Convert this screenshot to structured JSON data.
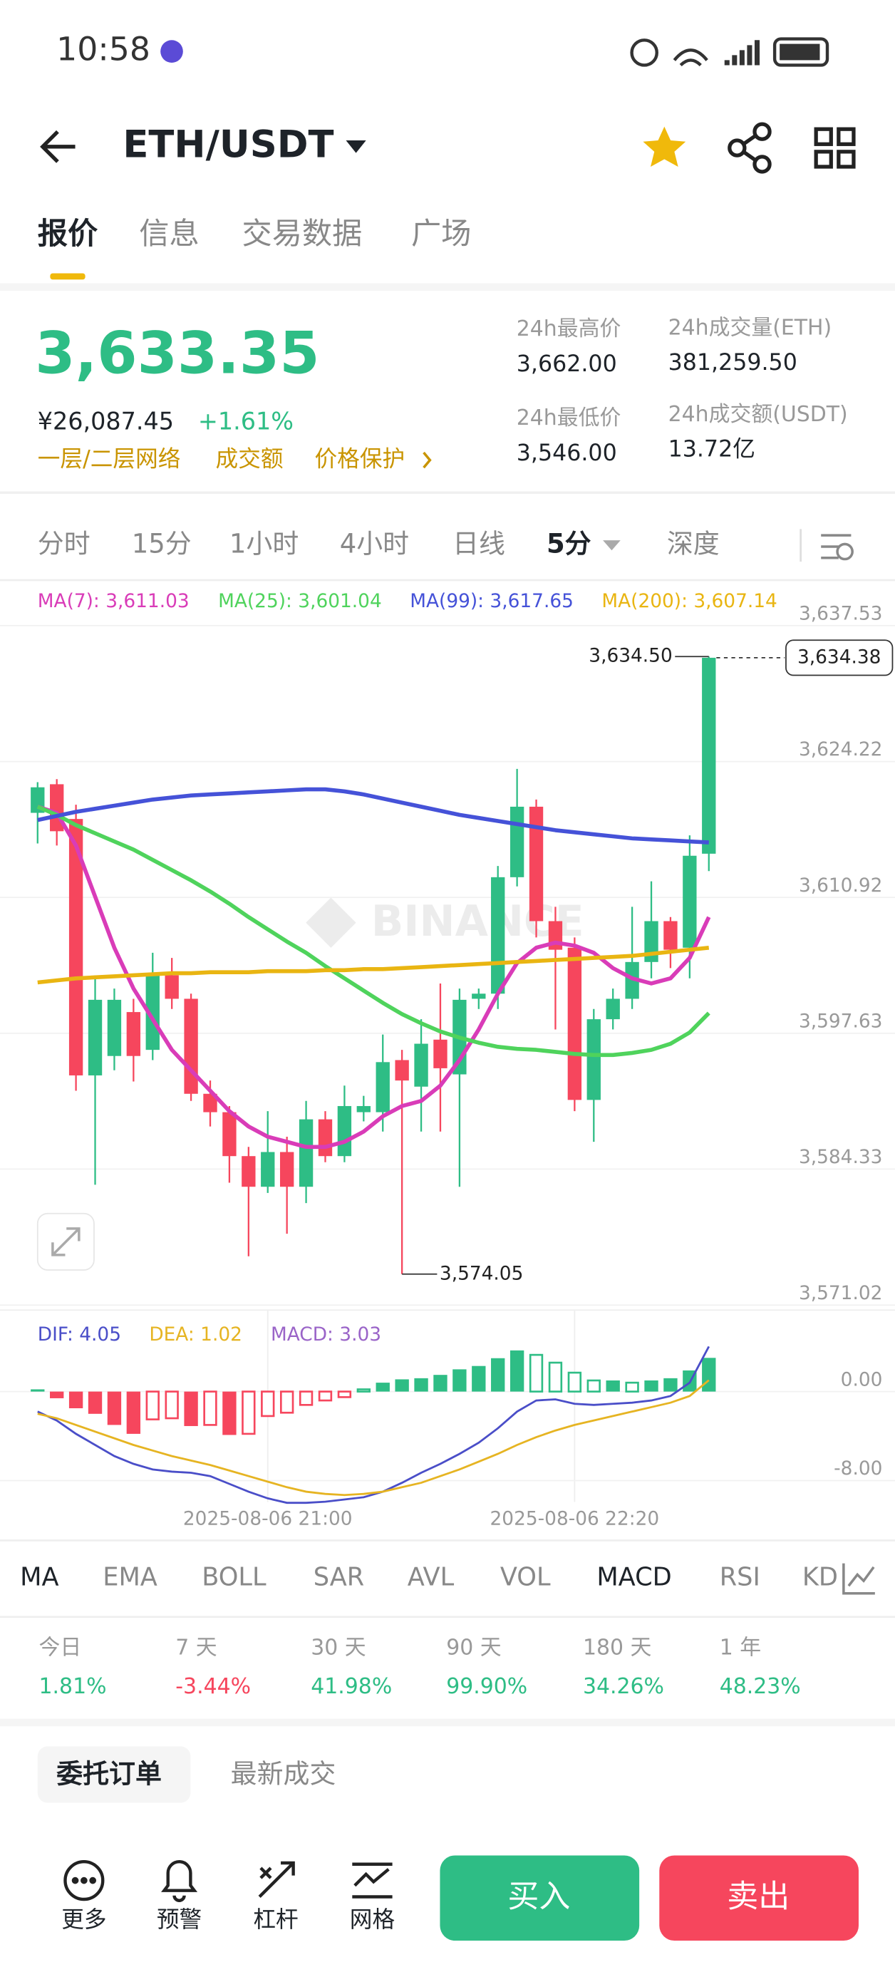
{
  "status": {
    "time": "10:58"
  },
  "header": {
    "pair": "ETH/USDT"
  },
  "tabs": [
    "报价",
    "信息",
    "交易数据",
    "广场"
  ],
  "quote": {
    "price": "3,633.35",
    "cny": "¥26,087.45",
    "change": "+1.61%",
    "links": [
      "一层/二层网络",
      "成交额",
      "价格保护"
    ],
    "stats": [
      {
        "label": "24h最高价",
        "value": "3,662.00"
      },
      {
        "label": "24h最低价",
        "value": "3,546.00"
      },
      {
        "label": "24h成交量(ETH)",
        "value": "381,259.50"
      },
      {
        "label": "24h成交额(USDT)",
        "value": "13.72亿"
      }
    ]
  },
  "intervals": [
    "分时",
    "15分",
    "1小时",
    "4小时",
    "日线",
    "5分",
    "深度"
  ],
  "chart_data": [
    {
      "type": "candlestick",
      "watermark": "BINANCE",
      "grid": true,
      "up_color": "#2ebd85",
      "down_color": "#f6465d",
      "open": [
        3619.2,
        3622.0,
        3618.6,
        3593.5,
        3595.4,
        3599.7,
        3596.0,
        3603.3,
        3601.0,
        3591.7,
        3589.9,
        3585.6,
        3582.6,
        3586.0,
        3582.6,
        3589.2,
        3585.6,
        3589.9,
        3589.9,
        3595.0,
        3592.4,
        3597.0,
        3593.6,
        3601.0,
        3601.5,
        3612.9,
        3619.8,
        3608.6,
        3606.0,
        3591.1,
        3599.0,
        3601.0,
        3604.6,
        3608.6,
        3606.0,
        3615.2
      ],
      "high": [
        3622.2,
        3622.5,
        3620.0,
        3603.3,
        3602.0,
        3601.0,
        3605.5,
        3605.0,
        3601.5,
        3593.0,
        3590.5,
        3586.5,
        3590.0,
        3587.5,
        3591.0,
        3590.0,
        3592.5,
        3591.5,
        3597.5,
        3596.0,
        3599.0,
        3602.5,
        3602.0,
        3602.0,
        3614.0,
        3623.5,
        3620.5,
        3610.0,
        3607.0,
        3600.0,
        3602.0,
        3610.0,
        3612.5,
        3609.0,
        3617.0,
        3634.5
      ],
      "low": [
        3616.2,
        3616.0,
        3592.0,
        3582.8,
        3594.0,
        3592.9,
        3595.0,
        3600.0,
        3591.0,
        3588.5,
        3583.0,
        3575.8,
        3582.0,
        3578.0,
        3581.0,
        3585.0,
        3585.0,
        3589.0,
        3588.0,
        3574.05,
        3588.0,
        3588.0,
        3582.6,
        3600.0,
        3600.0,
        3612.0,
        3607.0,
        3598.0,
        3590.0,
        3587.0,
        3598.0,
        3600.0,
        3603.0,
        3604.0,
        3603.0,
        3613.5
      ],
      "close": [
        3621.7,
        3617.4,
        3593.5,
        3600.9,
        3600.9,
        3595.4,
        3603.3,
        3601.0,
        3591.7,
        3589.9,
        3585.6,
        3582.6,
        3586.0,
        3582.6,
        3589.2,
        3585.6,
        3590.5,
        3590.5,
        3594.8,
        3593.0,
        3596.6,
        3594.2,
        3600.9,
        3601.5,
        3612.9,
        3619.8,
        3608.6,
        3605.8,
        3591.1,
        3599.0,
        3601.0,
        3604.6,
        3608.6,
        3605.8,
        3615.0,
        3634.38
      ],
      "ylim": [
        3570.53,
        3638.02
      ],
      "yticks": [
        {
          "value": 3637.53,
          "label": "3,637.53"
        },
        {
          "value": 3624.22,
          "label": "3,624.22"
        },
        {
          "value": 3610.92,
          "label": "3,610.92"
        },
        {
          "value": 3597.63,
          "label": "3,597.63"
        },
        {
          "value": 3584.33,
          "label": "3,584.33"
        },
        {
          "value": 3571.02,
          "label": "3,571.02"
        }
      ],
      "high_label": "3,634.50",
      "low_label": "3,574.05",
      "last_price": {
        "value": 3634.38,
        "label": "3,634.38"
      },
      "series": [
        {
          "name": "MA(7): 3,611.03",
          "color": "#d93cb8",
          "values": [
            3619.8,
            3619.2,
            3616,
            3611,
            3606,
            3602,
            3599,
            3596,
            3594,
            3592,
            3590,
            3588.5,
            3587.5,
            3587,
            3586.5,
            3586.5,
            3587,
            3588,
            3589.5,
            3590.5,
            3591,
            3592.5,
            3595,
            3598,
            3601.5,
            3604.5,
            3606,
            3606.5,
            3606.2,
            3605.5,
            3604,
            3603,
            3602.5,
            3603,
            3605,
            3609
          ]
        },
        {
          "name": "MA(25): 3,601.04",
          "color": "#4fd35c",
          "values": [
            3619.8,
            3619,
            3618,
            3617.2,
            3616.4,
            3615.6,
            3614.6,
            3613.6,
            3612.6,
            3611.5,
            3610.3,
            3609,
            3607.8,
            3606.6,
            3605.5,
            3604.2,
            3603,
            3601.8,
            3600.6,
            3599.5,
            3598.6,
            3597.8,
            3597.2,
            3596.7,
            3596.3,
            3596.1,
            3596,
            3595.8,
            3595.6,
            3595.5,
            3595.5,
            3595.7,
            3596,
            3596.6,
            3597.7,
            3599.6
          ]
        },
        {
          "name": "MA(99): 3,617.65",
          "color": "#4552d8",
          "values": [
            3618.5,
            3618.9,
            3619.3,
            3619.6,
            3619.9,
            3620.2,
            3620.5,
            3620.7,
            3620.9,
            3621,
            3621.1,
            3621.2,
            3621.3,
            3621.4,
            3621.5,
            3621.5,
            3621.3,
            3621,
            3620.6,
            3620.2,
            3619.8,
            3619.4,
            3619,
            3618.7,
            3618.4,
            3618.1,
            3617.8,
            3617.5,
            3617.3,
            3617.1,
            3616.9,
            3616.7,
            3616.6,
            3616.5,
            3616.4,
            3616.3
          ]
        },
        {
          "name": "MA(200): 3,607.14",
          "color": "#e9b512",
          "values": [
            3602.6,
            3602.8,
            3603,
            3603.1,
            3603.2,
            3603.3,
            3603.4,
            3603.5,
            3603.5,
            3603.6,
            3603.6,
            3603.6,
            3603.7,
            3603.7,
            3603.7,
            3603.8,
            3603.8,
            3603.9,
            3603.9,
            3604,
            3604.1,
            3604.2,
            3604.3,
            3604.4,
            3604.5,
            3604.6,
            3604.7,
            3604.8,
            3604.9,
            3605,
            3605.1,
            3605.2,
            3605.4,
            3605.6,
            3605.8,
            3606
          ]
        }
      ]
    },
    {
      "type": "macd",
      "up_color": "#2ebd85",
      "down_color": "#f6465d",
      "categories": [
        null,
        null,
        null,
        null,
        null,
        null,
        null,
        null,
        null,
        null,
        null,
        null,
        "2025-08-06 21:00",
        null,
        null,
        null,
        null,
        null,
        null,
        null,
        null,
        null,
        null,
        null,
        null,
        null,
        null,
        null,
        "2025-08-06 22:20",
        null,
        null,
        null,
        null,
        null,
        null,
        null
      ],
      "ylim": [
        -10.2,
        7
      ],
      "yticks": [
        {
          "value": 0,
          "label": "0.00"
        },
        {
          "value": -8,
          "label": "-8.00"
        }
      ],
      "series": [
        {
          "name": "DIF: 4.05",
          "color": "#4a4ec8",
          "values": [
            -1.8,
            -2.6,
            -3.8,
            -4.8,
            -5.8,
            -6.5,
            -7.0,
            -7.2,
            -7.3,
            -7.6,
            -8.3,
            -9.0,
            -9.6,
            -10.0,
            -10.0,
            -9.9,
            -9.7,
            -9.5,
            -9.0,
            -8.2,
            -7.3,
            -6.5,
            -5.6,
            -4.6,
            -3.3,
            -1.8,
            -0.8,
            -0.7,
            -1.1,
            -1.2,
            -1.1,
            -1.0,
            -0.8,
            -0.4,
            0.8,
            4.05
          ]
        },
        {
          "name": "DEA: 1.02",
          "color": "#e6b422",
          "values": [
            -2.0,
            -2.4,
            -3.0,
            -3.6,
            -4.2,
            -4.8,
            -5.3,
            -5.8,
            -6.2,
            -6.6,
            -7.1,
            -7.6,
            -8.1,
            -8.6,
            -9.0,
            -9.2,
            -9.3,
            -9.2,
            -9.0,
            -8.6,
            -8.2,
            -7.6,
            -7.0,
            -6.3,
            -5.6,
            -4.8,
            -4.1,
            -3.5,
            -3.0,
            -2.6,
            -2.2,
            -1.8,
            -1.4,
            -1.0,
            -0.4,
            1.02
          ]
        },
        {
          "name": "MACD: 3.03",
          "color": "#9a64c8",
          "values": [
            0.2,
            -0.6,
            -1.5,
            -2.0,
            -3.0,
            -3.8,
            -2.5,
            -2.4,
            -3.1,
            -3.0,
            -3.9,
            -3.8,
            -2.2,
            -1.9,
            -1.2,
            -0.8,
            -0.5,
            0.2,
            0.8,
            1.1,
            1.2,
            1.5,
            2.0,
            2.3,
            3.0,
            3.7,
            3.3,
            2.6,
            1.7,
            1.0,
            1.0,
            0.8,
            1.0,
            1.2,
            1.9,
            3.03
          ]
        }
      ]
    }
  ],
  "indicators": [
    "MA",
    "EMA",
    "BOLL",
    "SAR",
    "AVL",
    "VOL",
    "MACD",
    "RSI",
    "KD"
  ],
  "performance": [
    {
      "label": "今日",
      "value": "1.81%"
    },
    {
      "label": "7 天",
      "value": "-3.44%"
    },
    {
      "label": "30 天",
      "value": "41.98%"
    },
    {
      "label": "90 天",
      "value": "99.90%"
    },
    {
      "label": "180 天",
      "value": "34.26%"
    },
    {
      "label": "1 年",
      "value": "48.23%"
    }
  ],
  "orders": [
    "委托订单",
    "最新成交"
  ],
  "bottom": [
    "更多",
    "预警",
    "杠杆",
    "网格"
  ],
  "buy": "买入",
  "sell": "卖出"
}
